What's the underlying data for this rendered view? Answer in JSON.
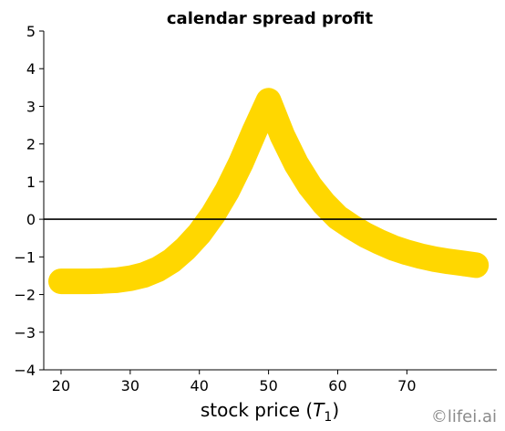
{
  "chart_data": {
    "type": "line",
    "title": "calendar spread profit",
    "xlabel_prefix": "stock price (",
    "xlabel_var": "T",
    "xlabel_sub": "1",
    "xlabel_suffix": ")",
    "ylabel": "",
    "xlim": [
      17.5,
      83
    ],
    "ylim": [
      -4,
      5
    ],
    "xticks": [
      20,
      30,
      40,
      50,
      60,
      70
    ],
    "yticks": [
      -4,
      -3,
      -2,
      -1,
      0,
      1,
      2,
      3,
      4,
      5
    ],
    "ytick_labels": [
      "−4",
      "−3",
      "−2",
      "−1",
      "0",
      "1",
      "2",
      "3",
      "4",
      "5"
    ],
    "hline_y": 0,
    "series": [
      {
        "color": "#FFD700",
        "x": [
          20,
          22,
          24,
          26,
          28,
          30,
          32,
          34,
          36,
          38,
          40,
          42,
          44,
          46,
          48,
          50,
          52,
          54,
          56,
          58,
          60,
          62,
          64,
          66,
          68,
          70,
          72,
          74,
          76,
          78,
          80
        ],
        "y": [
          -1.65,
          -1.65,
          -1.65,
          -1.64,
          -1.62,
          -1.57,
          -1.48,
          -1.33,
          -1.1,
          -0.78,
          -0.38,
          0.13,
          0.75,
          1.5,
          2.35,
          3.15,
          2.22,
          1.47,
          0.88,
          0.42,
          0.05,
          -0.2,
          -0.42,
          -0.6,
          -0.76,
          -0.88,
          -0.98,
          -1.06,
          -1.12,
          -1.17,
          -1.22
        ]
      }
    ]
  },
  "watermark": "©lifei.ai"
}
